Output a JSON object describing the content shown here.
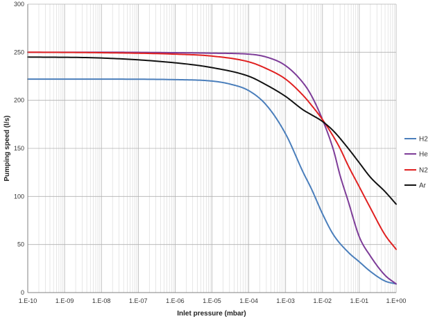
{
  "chart_data": {
    "type": "line",
    "title": "",
    "xlabel": "Inlet pressure (mbar)",
    "ylabel": "Pumping speed (l/s)",
    "x_scale": "log",
    "xlim": [
      1e-10,
      1
    ],
    "ylim": [
      0,
      300
    ],
    "x_tick_values": [
      1e-10,
      1e-09,
      1e-08,
      1e-07,
      1e-06,
      1e-05,
      0.0001,
      0.001,
      0.01,
      0.1,
      1
    ],
    "x_tick_labels": [
      "1.E-10",
      "1.E-09",
      "1.E-08",
      "1.E-07",
      "1.E-06",
      "1.E-05",
      "1.E-04",
      "1.E-03",
      "1.E-02",
      "1.E-01",
      "1.E+00"
    ],
    "y_ticks": [
      0,
      50,
      100,
      150,
      200,
      250,
      300
    ],
    "grid": true,
    "legend_position": "right",
    "series": [
      {
        "name": "H2",
        "color": "#4a7ebb",
        "x": [
          1e-10,
          1e-08,
          1e-06,
          1e-05,
          3e-05,
          0.0001,
          0.0003,
          0.001,
          0.003,
          0.005,
          0.01,
          0.02,
          0.05,
          0.1,
          0.2,
          0.5,
          1
        ],
        "y": [
          222,
          222,
          221.5,
          220,
          217,
          210,
          195,
          165,
          125,
          108,
          82,
          60,
          42,
          32,
          22,
          12,
          9
        ]
      },
      {
        "name": "He",
        "color": "#7d3c98",
        "x": [
          1e-10,
          1e-08,
          1e-06,
          1e-05,
          0.0001,
          0.0003,
          0.001,
          0.003,
          0.005,
          0.01,
          0.02,
          0.03,
          0.05,
          0.1,
          0.2,
          0.5,
          1
        ],
        "y": [
          250,
          250,
          249.5,
          249,
          248,
          245,
          236,
          218,
          205,
          180,
          148,
          122,
          95,
          58,
          38,
          18,
          9
        ]
      },
      {
        "name": "N2",
        "color": "#e02020",
        "x": [
          1e-10,
          1e-08,
          1e-06,
          1e-05,
          0.0001,
          0.0003,
          0.001,
          0.003,
          0.005,
          0.01,
          0.02,
          0.03,
          0.05,
          0.1,
          0.2,
          0.5,
          1
        ],
        "y": [
          250,
          249.5,
          248,
          246,
          240,
          233,
          222,
          205,
          195,
          180,
          162,
          150,
          132,
          110,
          88,
          60,
          45
        ]
      },
      {
        "name": "Ar",
        "color": "#111111",
        "x": [
          1e-10,
          1e-08,
          1e-06,
          1e-05,
          0.0001,
          0.0003,
          0.001,
          0.003,
          0.005,
          0.01,
          0.02,
          0.05,
          0.1,
          0.2,
          0.5,
          1
        ],
        "y": [
          245,
          244,
          239,
          234,
          225,
          216,
          204,
          190,
          185,
          178,
          168,
          150,
          135,
          120,
          105,
          92
        ]
      }
    ]
  }
}
